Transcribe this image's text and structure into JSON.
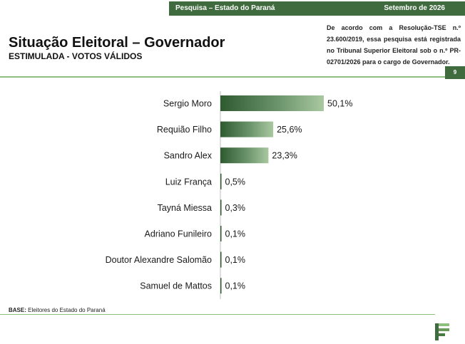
{
  "header": {
    "survey_label": "Pesquisa – Estado do Paraná",
    "date_label": "Setembro de 2026",
    "title": "Situação Eleitoral – Governador",
    "subtitle": "ESTIMULADA - VOTOS VÁLIDOS",
    "registration_note": "De acordo com a Resolução-TSE n.º 23.600/2019, essa pesquisa está registrada no Tribunal Superior Eleitoral sob o n.º PR-02701/2026 para o cargo de Governador.",
    "page_number": "9"
  },
  "footer": {
    "base_label": "BASE:",
    "base_text": "Eleitores do Estado do Paraná"
  },
  "colors": {
    "accent": "#3f6b3f",
    "rule": "#8fbf7f",
    "bar_dark": "#2f5a30",
    "bar_light": "#a9c8a0"
  },
  "chart_data": {
    "type": "bar",
    "orientation": "horizontal",
    "categories": [
      "Sergio Moro",
      "Requião Filho",
      "Sandro Alex",
      "Luiz França",
      "Tayná Miessa",
      "Adriano Funileiro",
      "Doutor Alexandre Salomão",
      "Samuel de Mattos"
    ],
    "values": [
      50.1,
      25.6,
      23.3,
      0.5,
      0.3,
      0.1,
      0.1,
      0.1
    ],
    "value_labels": [
      "50,1%",
      "25,6%",
      "23,3%",
      "0,5%",
      "0,3%",
      "0,1%",
      "0,1%",
      "0,1%"
    ],
    "title": "",
    "xlabel": "",
    "ylabel": "",
    "xlim": [
      0,
      100
    ],
    "grid": false
  }
}
